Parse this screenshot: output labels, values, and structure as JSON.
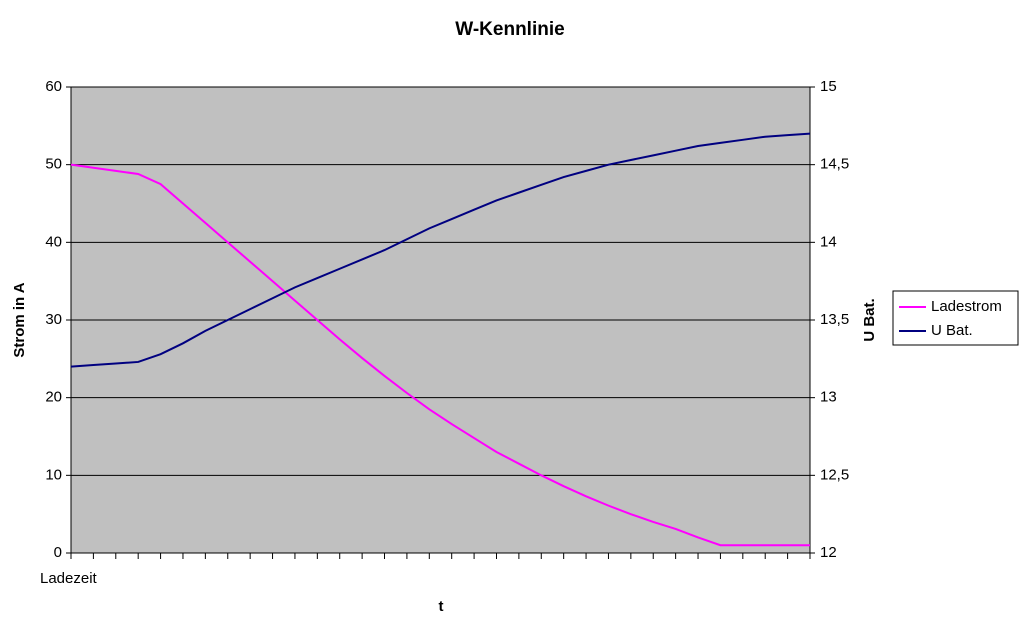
{
  "chart_data": {
    "type": "line",
    "title": "W-Kennlinie",
    "x_label": "t",
    "y_label": "Strom in A",
    "y2_label": "U Bat.",
    "categories": [
      "Ladezeit",
      null,
      null,
      null,
      null,
      null,
      null,
      null,
      null,
      null,
      null,
      null,
      null,
      null,
      null,
      null,
      null,
      null,
      null,
      null,
      null,
      null,
      null,
      null,
      null,
      null,
      null,
      null,
      null,
      null,
      null,
      null,
      null,
      null
    ],
    "series": [
      {
        "name": "Ladestrom",
        "color": "#ff00ff",
        "values": [
          50,
          49.6,
          49.2,
          48.8,
          47.5,
          45,
          42.5,
          40,
          37.5,
          35,
          32.5,
          30,
          27.5,
          25.1,
          22.8,
          20.6,
          18.5,
          16.6,
          14.8,
          13,
          11.5,
          10,
          8.6,
          7.3,
          6.1,
          5,
          4,
          3.1,
          2,
          1,
          1,
          1,
          1,
          1
        ]
      },
      {
        "name": "U Bat.",
        "color": "#000080",
        "axis": "y2",
        "values": [
          13.2,
          13.21,
          13.22,
          13.23,
          13.28,
          13.35,
          13.43,
          13.5,
          13.57,
          13.64,
          13.71,
          13.77,
          13.83,
          13.89,
          13.95,
          14.02,
          14.09,
          14.15,
          14.21,
          14.27,
          14.32,
          14.37,
          14.42,
          14.46,
          14.5,
          14.53,
          14.56,
          14.59,
          14.62,
          14.64,
          14.66,
          14.68,
          14.69,
          14.7
        ]
      }
    ],
    "ylim": [
      0,
      60
    ],
    "yticks": [
      0,
      10,
      20,
      30,
      40,
      50,
      60
    ],
    "y2lim": [
      12,
      15
    ],
    "y2ticks": [
      12,
      {
        "value": 12.5,
        "label": "12,5"
      },
      13,
      {
        "value": 13.5,
        "label": "13,5"
      },
      14,
      {
        "value": 14.5,
        "label": "14,5"
      },
      15
    ],
    "grid": true,
    "legend": "right"
  }
}
